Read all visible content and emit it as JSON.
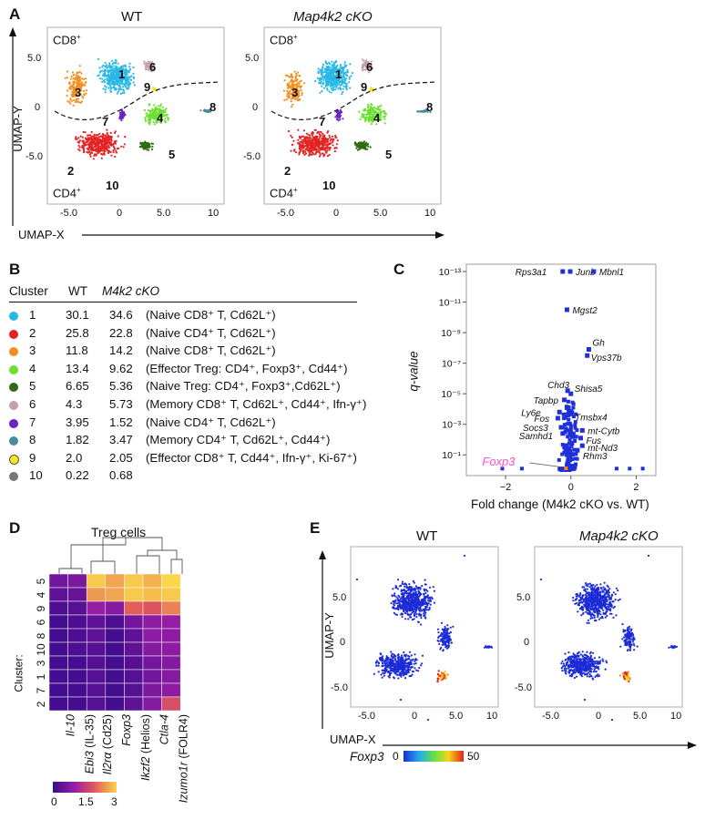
{
  "panels": {
    "A": {
      "label": "A",
      "titles": [
        "WT",
        "Map4k2 cKO"
      ],
      "x_axis": "UMAP-X",
      "y_axis": "UMAP-Y",
      "x_ticks": [
        "-5.0",
        "0",
        "5.0",
        "10"
      ],
      "y_ticks": [
        "5.0",
        "0",
        "-5.0"
      ],
      "cd8_label": "CD8",
      "cd4_label": "CD4",
      "cluster_numbers": [
        "1",
        "2",
        "3",
        "4",
        "5",
        "6",
        "7",
        "8",
        "9",
        "10"
      ]
    },
    "B": {
      "label": "B",
      "headers": {
        "cluster": "Cluster",
        "wt": "WT",
        "cko": "M4k2 cKO"
      },
      "rows": [
        {
          "cluster": "1",
          "color": "#29b8e6",
          "wt": "30.1",
          "cko": "34.6",
          "desc": "(Naive CD8⁺ T, Cd62L⁺)"
        },
        {
          "cluster": "2",
          "color": "#e32222",
          "wt": "25.8",
          "cko": "22.8",
          "desc": "(Naive CD4⁺ T, Cd62L⁺)"
        },
        {
          "cluster": "3",
          "color": "#f28e1c",
          "wt": "11.8",
          "cko": "14.2",
          "desc": "(Naive CD8⁺ T, Cd62L⁺)"
        },
        {
          "cluster": "4",
          "color": "#6be02e",
          "wt": "13.4",
          "cko": "9.62",
          "desc": "(Effector Treg: CD4⁺, Foxp3⁺, Cd44⁺)"
        },
        {
          "cluster": "5",
          "color": "#2e6b16",
          "wt": "6.65",
          "cko": "5.36",
          "desc": "(Naive Treg: CD4⁺, Foxp3⁺,Cd62L⁺)"
        },
        {
          "cluster": "6",
          "color": "#c39fb0",
          "wt": "4.3",
          "cko": "5.73",
          "desc": "(Memory CD8⁺ T, Cd62L⁺, Cd44⁺, Ifn-γ⁺)"
        },
        {
          "cluster": "7",
          "color": "#6a22c2",
          "wt": "3.95",
          "cko": "1.52",
          "desc": "(Naive CD4⁺ T, Cd62L⁺)"
        },
        {
          "cluster": "8",
          "color": "#4a8c9c",
          "wt": "1.82",
          "cko": "3.47",
          "desc": "(Memory CD4⁺ T, Cd62L⁺, Cd44⁺)"
        },
        {
          "cluster": "9",
          "color": "#f5e61e",
          "wt": "2.0",
          "cko": "2.05",
          "desc": "(Effector CD8⁺ T, Cd44⁺, Ifn-γ⁺, Ki-67⁺)"
        },
        {
          "cluster": "10",
          "color": "#777777",
          "wt": "0.22",
          "cko": "0.68",
          "desc": ""
        }
      ]
    },
    "C": {
      "label": "C",
      "x_axis": "Fold change (M4k2 cKO vs. WT)",
      "y_axis": "q-value",
      "x_ticks": [
        "−2",
        "0",
        "2"
      ],
      "y_ticks": [
        "10⁻¹³",
        "10⁻¹¹",
        "10⁻⁹",
        "10⁻⁷",
        "10⁻⁵",
        "10⁻³",
        "10⁻¹"
      ],
      "genes": [
        "Rps3a1",
        "Junb",
        "Mbnl1",
        "Mgst2",
        "Gh",
        "Vps37b",
        "Chd3",
        "Shisa5",
        "Tapbp",
        "Ly6e",
        "Fos",
        "Tmsbx4",
        "Socs3",
        "Samhd1",
        "mt-Cytb",
        "Fus",
        "mt-Nd3",
        "Rhm3"
      ],
      "highlight_gene": "Foxp3",
      "highlight_color": "#ff4fd8"
    },
    "D": {
      "label": "D",
      "title": "Treg cells",
      "row_prefix": "Cluster:",
      "rows": [
        "5",
        "4",
        "9",
        "6",
        "8",
        "10",
        "3",
        "1",
        "7",
        "2"
      ],
      "cols": [
        "Il-10",
        "Ebi3 (IL-35)",
        "Il2rα (Cd25)",
        "Foxp3",
        "Ikzf2 (Helios)",
        "Ctla-4",
        "Izumo1r (FOLR4)"
      ],
      "scale_ticks": [
        "0",
        "1.5",
        "3"
      ]
    },
    "E": {
      "label": "E",
      "titles": [
        "WT",
        "Map4k2 cKO"
      ],
      "x_axis": "UMAP-X",
      "y_axis": "UMAP-Y",
      "x_ticks": [
        "-5.0",
        "0",
        "5.0",
        "10"
      ],
      "y_ticks": [
        "5.0",
        "0",
        "-5.0"
      ],
      "legend_gene": "Foxp3",
      "legend_min": "0",
      "legend_max": "50"
    }
  },
  "chart_data": [
    {
      "type": "table",
      "title": "",
      "columns": [
        "Cluster",
        "WT",
        "M4k2 cKO"
      ],
      "rows": [
        [
          "1",
          "30.1",
          "34.6"
        ],
        [
          "2",
          "25.8",
          "22.8"
        ],
        [
          "3",
          "11.8",
          "14.2"
        ],
        [
          "4",
          "13.4",
          "9.62"
        ],
        [
          "5",
          "6.65",
          "5.36"
        ],
        [
          "6",
          "4.3",
          "5.73"
        ],
        [
          "7",
          "3.95",
          "1.52"
        ],
        [
          "8",
          "1.82",
          "3.47"
        ],
        [
          "9",
          "2.0",
          "2.05"
        ],
        [
          "10",
          "0.22",
          "0.68"
        ]
      ]
    },
    {
      "type": "scatter",
      "xlabel": "Fold change (M4k2 cKO vs. WT)",
      "ylabel": "q-value",
      "xlim": [
        -3.2,
        2.6
      ],
      "yscale": "log",
      "points": [
        {
          "gene": "Rps3a1",
          "x": -0.25,
          "y_exp": -13
        },
        {
          "gene": "Junb",
          "x": -0.02,
          "y_exp": -13
        },
        {
          "gene": "Mbnl1",
          "x": 0.7,
          "y_exp": -13
        },
        {
          "gene": "Mgst2",
          "x": -0.12,
          "y_exp": -10.5
        },
        {
          "gene": "Gh",
          "x": 0.55,
          "y_exp": -7.9
        },
        {
          "gene": "Vps37b",
          "x": 0.5,
          "y_exp": -7.5
        },
        {
          "gene": "Chd3",
          "x": -0.1,
          "y_exp": -5.2
        },
        {
          "gene": "Shisa5",
          "x": 0.0,
          "y_exp": -5.0
        },
        {
          "gene": "Tapbp",
          "x": -0.2,
          "y_exp": -4.6
        },
        {
          "gene": "Ly6e",
          "x": -0.35,
          "y_exp": -3.8
        },
        {
          "gene": "Fos",
          "x": -0.4,
          "y_exp": -3.4
        },
        {
          "gene": "Tmsbx4",
          "x": -0.1,
          "y_exp": -3.6
        },
        {
          "gene": "Socs3",
          "x": -0.3,
          "y_exp": -2.8
        },
        {
          "gene": "Samhd1",
          "x": -0.25,
          "y_exp": -2.4
        },
        {
          "gene": "mt-Cytb",
          "x": 0.35,
          "y_exp": -2.6
        },
        {
          "gene": "Fus",
          "x": 0.3,
          "y_exp": -2.1
        },
        {
          "gene": "mt-Nd3",
          "x": 0.35,
          "y_exp": -1.6
        },
        {
          "gene": "Rhm3",
          "x": 0.2,
          "y_exp": -1.3
        },
        {
          "gene": "Foxp3",
          "x": -0.15,
          "y_exp": 0
        }
      ]
    },
    {
      "type": "heatmap",
      "title": "Treg cells",
      "rows": [
        "5",
        "4",
        "9",
        "6",
        "8",
        "10",
        "3",
        "1",
        "7",
        "2"
      ],
      "cols": [
        "Il-10",
        "Ebi3 (IL-35)",
        "Il2rα (Cd25)",
        "Foxp3",
        "Ikzf2 (Helios)",
        "Ctla-4",
        "Izumo1r (FOLR4)"
      ],
      "values": [
        [
          0.6,
          0.7,
          2.9,
          2.6,
          2.9,
          2.7,
          3.0
        ],
        [
          0.4,
          0.5,
          2.5,
          2.6,
          2.9,
          2.8,
          2.9
        ],
        [
          0.2,
          0.3,
          1.0,
          0.8,
          2.0,
          1.9,
          2.3
        ],
        [
          0.1,
          0.2,
          0.4,
          0.2,
          0.6,
          0.9,
          1.0
        ],
        [
          0.1,
          0.2,
          0.4,
          0.1,
          0.4,
          0.9,
          0.9
        ],
        [
          0.1,
          0.2,
          0.3,
          0.1,
          0.4,
          0.8,
          0.9
        ],
        [
          0.1,
          0.1,
          0.3,
          0.1,
          0.3,
          0.6,
          0.8
        ],
        [
          0.1,
          0.1,
          0.3,
          0.1,
          0.3,
          0.6,
          0.8
        ],
        [
          0.1,
          0.1,
          0.3,
          0.1,
          0.3,
          0.7,
          0.9
        ],
        [
          0.1,
          0.1,
          0.3,
          0.1,
          0.4,
          0.8,
          1.8
        ]
      ],
      "scale": [
        0,
        3
      ]
    }
  ]
}
